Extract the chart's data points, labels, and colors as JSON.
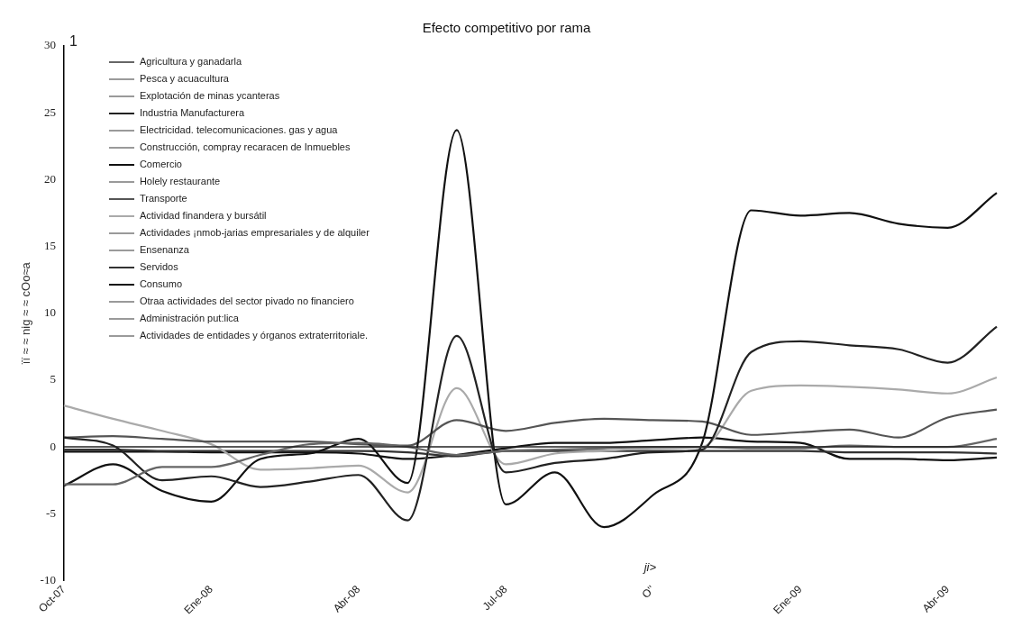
{
  "chart_data": {
    "type": "line",
    "title": "Efecto competitivo por rama",
    "ylabel": "ïï ≈ ≈ nig ≈ ≈ cOo≈a",
    "categories": [
      "Oct-07",
      null,
      null,
      "Ene-08",
      null,
      null,
      "Abr-08",
      null,
      null,
      "Jul-08",
      null,
      null,
      "O''",
      null,
      null,
      "Ene-09",
      null,
      null,
      "Abr-09",
      null
    ],
    "series": [
      {
        "name": "Agricultura y ganadarla",
        "color": "#666666",
        "values": [
          -2.8,
          -2.8,
          -1.5,
          -1.5,
          -0.6,
          0.2,
          0.3,
          0.0,
          -0.6,
          -0.3,
          -0.2,
          -0.1,
          0.0,
          0.0,
          -0.1,
          -0.1,
          0.1,
          0.0,
          0.0,
          0.6
        ]
      },
      {
        "name": "Pesca y acuacultura",
        "color": "#9a9a9a",
        "values": [
          null,
          null,
          null,
          null,
          null,
          null,
          null,
          null,
          null,
          null,
          null,
          null,
          null,
          null,
          null,
          null,
          null,
          null,
          null,
          null
        ]
      },
      {
        "name": "Explotación de minas ycanteras",
        "color": "#9a9a9a",
        "values": [
          null,
          null,
          null,
          null,
          null,
          null,
          null,
          null,
          null,
          null,
          null,
          null,
          null,
          null,
          null,
          null,
          null,
          null,
          null,
          null
        ]
      },
      {
        "name": "Industria Manufacturera",
        "color": "#222222",
        "values": [
          0.7,
          0.1,
          -2.5,
          -2.2,
          -3.0,
          -2.6,
          -2.1,
          -5.5,
          8.3,
          -1.9,
          -1.2,
          -0.9,
          -0.4,
          -0.2,
          7.1,
          7.9,
          7.6,
          7.3,
          6.3,
          9.0
        ]
      },
      {
        "name": "Electricidad. telecomunicaciones. gas y agua",
        "color": "#9a9a9a",
        "values": [
          null,
          null,
          null,
          null,
          null,
          null,
          null,
          null,
          null,
          null,
          null,
          null,
          null,
          null,
          null,
          null,
          null,
          null,
          null,
          null
        ]
      },
      {
        "name": "Construcción, compray recaracen de Inmuebles",
        "color": "#9a9a9a",
        "values": [
          null,
          null,
          null,
          null,
          null,
          null,
          null,
          null,
          null,
          null,
          null,
          null,
          null,
          null,
          null,
          null,
          null,
          null,
          null,
          null
        ]
      },
      {
        "name": "Comercio",
        "color": "#111111",
        "values": [
          -2.9,
          -1.3,
          -3.3,
          -4.1,
          -0.9,
          -0.5,
          0.6,
          -2.7,
          23.7,
          -4.3,
          -1.9,
          -6.0,
          -3.6,
          0.3,
          17.7,
          17.3,
          17.5,
          16.7,
          16.4,
          19.0
        ]
      },
      {
        "name": "Holely restaurante",
        "color": "#9a9a9a",
        "values": [
          null,
          null,
          null,
          null,
          null,
          null,
          null,
          null,
          null,
          null,
          null,
          null,
          null,
          null,
          null,
          null,
          null,
          null,
          null,
          null
        ]
      },
      {
        "name": "Transporte",
        "color": "#555555",
        "values": [
          0.7,
          0.8,
          0.6,
          0.4,
          0.4,
          0.4,
          0.2,
          0.1,
          2.0,
          1.2,
          1.8,
          2.1,
          2.0,
          1.9,
          0.9,
          1.1,
          1.3,
          0.7,
          2.2,
          2.8
        ]
      },
      {
        "name": "Actividad finandera y bursátil",
        "color": "#aaaaaa",
        "values": [
          3.1,
          2.1,
          1.2,
          0.2,
          -1.7,
          -1.6,
          -1.4,
          -3.4,
          4.4,
          -1.3,
          -0.5,
          -0.3,
          -0.1,
          0.0,
          4.2,
          4.6,
          4.5,
          4.3,
          4.0,
          5.2
        ]
      },
      {
        "name": "Actividades ¡nmob-jarias empresariales y de alquiler",
        "color": "#9a9a9a",
        "values": [
          null,
          null,
          null,
          null,
          null,
          null,
          null,
          null,
          null,
          null,
          null,
          null,
          null,
          null,
          null,
          null,
          null,
          null,
          null,
          null
        ]
      },
      {
        "name": "Ensenanza",
        "color": "#9a9a9a",
        "values": [
          null,
          null,
          null,
          null,
          null,
          null,
          null,
          null,
          null,
          null,
          null,
          null,
          null,
          null,
          null,
          null,
          null,
          null,
          null,
          null
        ]
      },
      {
        "name": "Servidos",
        "color": "#333333",
        "values": [
          -0.2,
          -0.2,
          -0.3,
          -0.3,
          -0.3,
          -0.3,
          -0.3,
          -0.4,
          -0.7,
          -0.3,
          -0.3,
          -0.3,
          -0.3,
          -0.3,
          -0.3,
          -0.3,
          -0.4,
          -0.4,
          -0.4,
          -0.5
        ]
      },
      {
        "name": "Consumo",
        "color": "#111111",
        "values": [
          -0.35,
          -0.35,
          -0.35,
          -0.4,
          -0.4,
          -0.4,
          -0.5,
          -0.9,
          -0.6,
          -0.1,
          0.3,
          0.3,
          0.5,
          0.7,
          0.4,
          0.3,
          -0.9,
          -0.9,
          -1.0,
          -0.8
        ]
      },
      {
        "name": "Otraa actividades del sector pivado no financiero",
        "color": "#9a9a9a",
        "values": [
          null,
          null,
          null,
          null,
          null,
          null,
          null,
          null,
          null,
          null,
          null,
          null,
          null,
          null,
          null,
          null,
          null,
          null,
          null,
          null
        ]
      },
      {
        "name": "Administración put:lica",
        "color": "#9a9a9a",
        "values": [
          null,
          null,
          null,
          null,
          null,
          null,
          null,
          null,
          null,
          null,
          null,
          null,
          null,
          null,
          null,
          null,
          null,
          null,
          null,
          null
        ]
      },
      {
        "name": "Actividades de entidades y órganos extraterritoriale.",
        "color": "#9a9a9a",
        "values": [
          null,
          null,
          null,
          null,
          null,
          null,
          null,
          null,
          null,
          null,
          null,
          null,
          null,
          null,
          null,
          null,
          null,
          null,
          null,
          null
        ]
      }
    ],
    "ylim": [
      -10,
      30
    ],
    "yticks": [
      -10,
      -5,
      0,
      5,
      10,
      15,
      20,
      25,
      30
    ],
    "ref_lines": [
      {
        "axis": "y",
        "value": 0,
        "color": "#222222"
      }
    ],
    "annotations": [
      "1",
      "ji>"
    ],
    "grid": false,
    "legend": "top left",
    "marker": "none",
    "line_style": "solid"
  }
}
